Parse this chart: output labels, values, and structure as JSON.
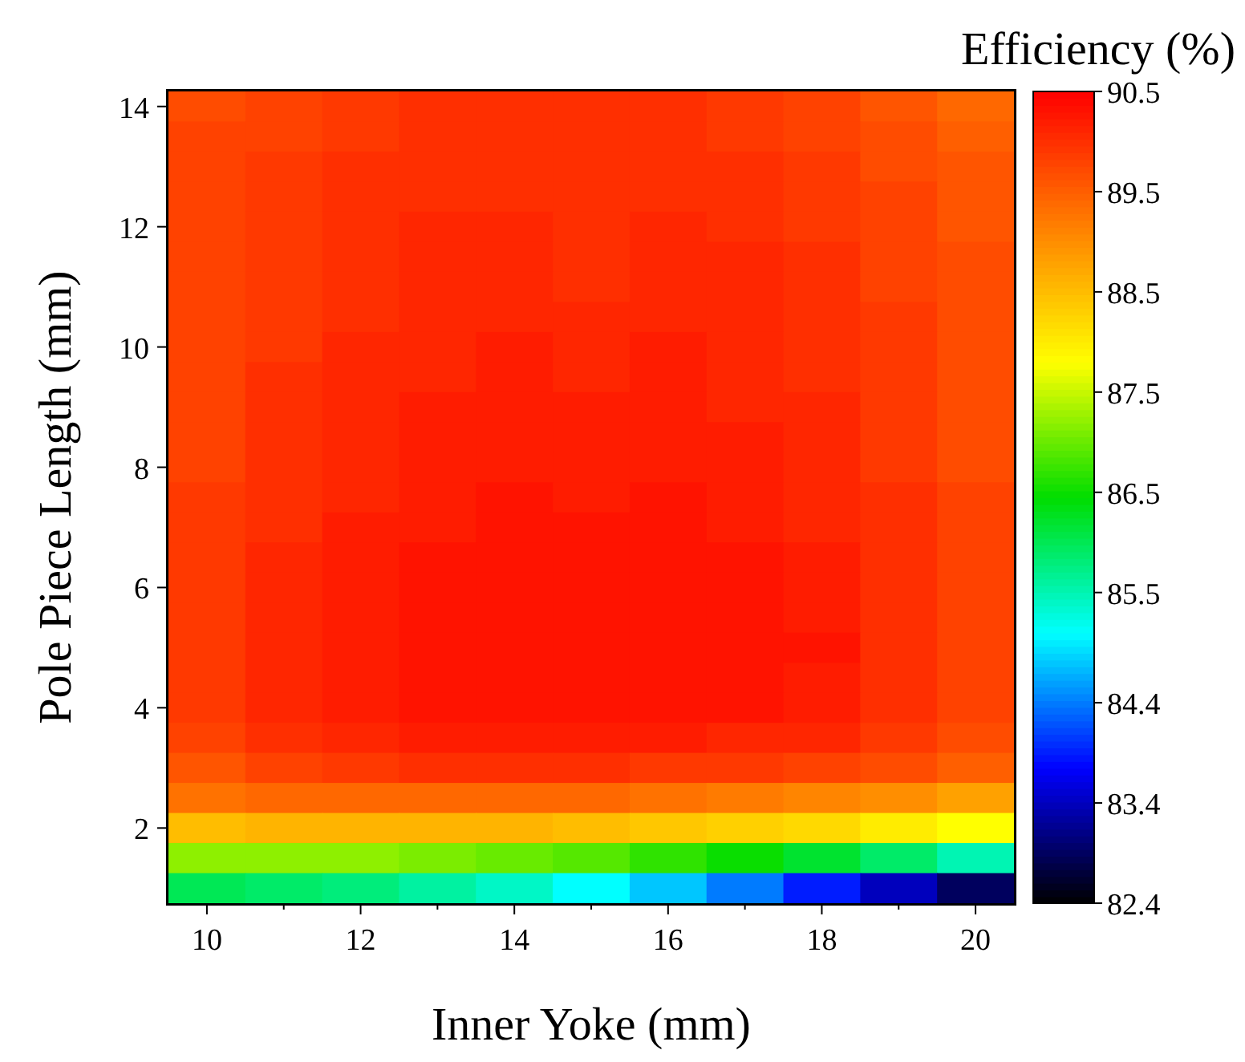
{
  "chart_data": {
    "type": "heatmap",
    "xlabel": "Inner Yoke (mm)",
    "ylabel": "Pole Piece Length (mm)",
    "clabel": "Efficiency (%)",
    "clim": [
      82.4,
      90.5
    ],
    "cticks": [
      82.4,
      83.4,
      84.4,
      85.5,
      86.5,
      87.5,
      88.5,
      89.5,
      90.5
    ],
    "categories": [
      "10",
      null,
      "12",
      null,
      "14",
      null,
      "16",
      null,
      "18",
      null,
      "20"
    ],
    "y_categories": [
      "14",
      null,
      null,
      null,
      "12",
      null,
      null,
      null,
      "10",
      null,
      null,
      null,
      "8",
      null,
      null,
      null,
      "6",
      null,
      null,
      null,
      "4",
      null,
      null,
      null,
      "2",
      null,
      null
    ],
    "cells": [
      [
        89.7,
        89.8,
        89.9,
        90.0,
        90.0,
        90.0,
        90.0,
        89.9,
        89.8,
        89.6,
        89.4
      ],
      [
        89.8,
        89.8,
        89.9,
        90.0,
        90.0,
        90.0,
        90.0,
        89.9,
        89.8,
        89.7,
        89.5
      ],
      [
        89.8,
        89.9,
        90.0,
        90.0,
        90.0,
        90.0,
        90.0,
        90.0,
        89.9,
        89.7,
        89.6
      ],
      [
        89.8,
        89.9,
        90.0,
        90.0,
        90.0,
        90.0,
        90.0,
        90.0,
        89.9,
        89.8,
        89.6
      ],
      [
        89.8,
        89.9,
        90.0,
        90.1,
        90.1,
        90.0,
        90.1,
        90.0,
        89.9,
        89.8,
        89.6
      ],
      [
        89.8,
        89.9,
        90.0,
        90.1,
        90.1,
        90.0,
        90.1,
        90.1,
        90.0,
        89.8,
        89.7
      ],
      [
        89.8,
        89.9,
        90.0,
        90.1,
        90.1,
        90.0,
        90.1,
        90.1,
        90.0,
        89.8,
        89.7
      ],
      [
        89.8,
        89.9,
        90.0,
        90.1,
        90.1,
        90.1,
        90.1,
        90.1,
        90.0,
        89.9,
        89.7
      ],
      [
        89.8,
        89.9,
        90.1,
        90.1,
        90.2,
        90.1,
        90.2,
        90.1,
        90.0,
        89.9,
        89.7
      ],
      [
        89.8,
        90.0,
        90.1,
        90.1,
        90.2,
        90.1,
        90.2,
        90.1,
        90.0,
        89.9,
        89.7
      ],
      [
        89.8,
        90.0,
        90.1,
        90.2,
        90.2,
        90.2,
        90.2,
        90.1,
        90.1,
        89.9,
        89.7
      ],
      [
        89.8,
        90.0,
        90.1,
        90.2,
        90.2,
        90.2,
        90.2,
        90.2,
        90.1,
        89.9,
        89.7
      ],
      [
        89.8,
        90.0,
        90.1,
        90.2,
        90.2,
        90.2,
        90.2,
        90.2,
        90.1,
        89.9,
        89.7
      ],
      [
        89.9,
        90.0,
        90.1,
        90.2,
        90.3,
        90.2,
        90.3,
        90.2,
        90.1,
        90.0,
        89.8
      ],
      [
        89.9,
        90.0,
        90.2,
        90.2,
        90.3,
        90.3,
        90.3,
        90.2,
        90.1,
        90.0,
        89.8
      ],
      [
        89.9,
        90.1,
        90.2,
        90.3,
        90.3,
        90.3,
        90.3,
        90.3,
        90.2,
        90.0,
        89.8
      ],
      [
        89.9,
        90.1,
        90.2,
        90.3,
        90.3,
        90.3,
        90.3,
        90.3,
        90.2,
        90.0,
        89.8
      ],
      [
        89.9,
        90.1,
        90.2,
        90.3,
        90.3,
        90.3,
        90.3,
        90.3,
        90.2,
        90.0,
        89.8
      ],
      [
        89.9,
        90.1,
        90.2,
        90.3,
        90.3,
        90.3,
        90.3,
        90.3,
        90.3,
        90.0,
        89.8
      ],
      [
        89.9,
        90.1,
        90.2,
        90.3,
        90.3,
        90.3,
        90.3,
        90.3,
        90.2,
        90.0,
        89.8
      ],
      [
        89.9,
        90.1,
        90.2,
        90.3,
        90.3,
        90.3,
        90.3,
        90.3,
        90.2,
        90.0,
        89.8
      ],
      [
        89.8,
        90.0,
        90.1,
        90.2,
        90.2,
        90.2,
        90.2,
        90.1,
        90.1,
        89.9,
        89.7
      ],
      [
        89.6,
        89.8,
        89.9,
        90.0,
        90.0,
        90.0,
        89.9,
        89.9,
        89.8,
        89.7,
        89.5
      ],
      [
        89.3,
        89.4,
        89.4,
        89.4,
        89.4,
        89.4,
        89.3,
        89.2,
        89.1,
        89.0,
        88.8
      ],
      [
        88.5,
        88.6,
        88.6,
        88.6,
        88.6,
        88.5,
        88.4,
        88.3,
        88.2,
        88.0,
        87.8
      ],
      [
        87.2,
        87.2,
        87.2,
        87.1,
        87.0,
        86.9,
        86.7,
        86.5,
        86.2,
        85.9,
        85.5
      ],
      [
        86.0,
        85.9,
        85.8,
        85.6,
        85.4,
        85.1,
        84.8,
        84.4,
        83.9,
        83.4,
        82.9
      ]
    ]
  }
}
